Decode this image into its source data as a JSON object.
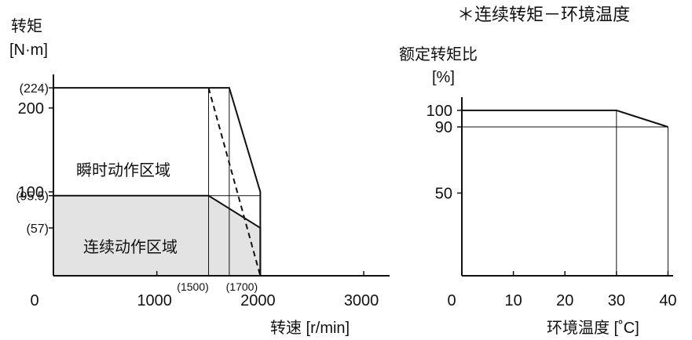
{
  "note": "＊连续转矩－环境温度",
  "chart_data": [
    {
      "type": "area",
      "ylabel": "转矩",
      "yunit": "[N·m]",
      "xlabel": "转速 [r/min]",
      "xlim": [
        0,
        3250
      ],
      "ylim": [
        0,
        240
      ],
      "x_ticks": [
        {
          "value": 0,
          "label": "0"
        },
        {
          "value": 1000,
          "label": "1000"
        },
        {
          "value": 2000,
          "label": "2000"
        },
        {
          "value": 3000,
          "label": "3000"
        }
      ],
      "y_ticks": [
        {
          "value": 100,
          "label": "100"
        },
        {
          "value": 200,
          "label": "200"
        }
      ],
      "y_marks": [
        {
          "value": 224,
          "label": "(224)"
        },
        {
          "value": 95.5,
          "label": "(95.5)"
        },
        {
          "value": 57,
          "label": "(57)"
        }
      ],
      "x_marks": [
        {
          "value": 1500,
          "label": "(1500)"
        },
        {
          "value": 1700,
          "label": "(1700)"
        }
      ],
      "series": [
        {
          "name": "瞬时动作区域",
          "style": "solid",
          "points": [
            [
              0,
              224
            ],
            [
              1700,
              224
            ],
            [
              2000,
              100
            ],
            [
              2000,
              0
            ]
          ]
        },
        {
          "name": "连续动作区域",
          "style": "solid-filled",
          "fill": "#e3e3e3",
          "points": [
            [
              0,
              95.5
            ],
            [
              1500,
              95.5
            ],
            [
              2000,
              57
            ],
            [
              2000,
              0
            ]
          ]
        },
        {
          "name": "",
          "style": "dashed",
          "points": [
            [
              1500,
              224
            ],
            [
              2000,
              0
            ]
          ]
        }
      ],
      "guides": [
        {
          "points": [
            [
              1500,
              0
            ],
            [
              1500,
              224
            ]
          ]
        },
        {
          "points": [
            [
              1700,
              0
            ],
            [
              1700,
              224
            ]
          ]
        },
        {
          "points": [
            [
              1500,
              95.5
            ],
            [
              2000,
              95.5
            ]
          ]
        },
        {
          "points": [
            [
              2000,
              100
            ],
            [
              2000,
              57
            ]
          ]
        }
      ]
    },
    {
      "type": "line",
      "ylabel": "额定转矩比",
      "yunit": "[%]",
      "xlabel": "环境温度 [˚C]",
      "xlim": [
        0,
        41
      ],
      "ylim": [
        0,
        108
      ],
      "x_ticks": [
        {
          "value": 0,
          "label": "0"
        },
        {
          "value": 10,
          "label": "10"
        },
        {
          "value": 20,
          "label": "20"
        },
        {
          "value": 30,
          "label": "30"
        },
        {
          "value": 40,
          "label": "40"
        }
      ],
      "y_ticks": [
        {
          "value": 50,
          "label": "50"
        },
        {
          "value": 90,
          "label": "90"
        },
        {
          "value": 100,
          "label": "100"
        }
      ],
      "series": [
        {
          "name": "",
          "points": [
            [
              0,
              100
            ],
            [
              30,
              100
            ],
            [
              40,
              90
            ]
          ]
        }
      ],
      "guides": [
        {
          "points": [
            [
              30,
              0
            ],
            [
              30,
              100
            ]
          ]
        },
        {
          "points": [
            [
              40,
              0
            ],
            [
              40,
              90
            ]
          ]
        },
        {
          "points": [
            [
              0,
              90
            ],
            [
              40,
              90
            ]
          ]
        }
      ]
    }
  ]
}
